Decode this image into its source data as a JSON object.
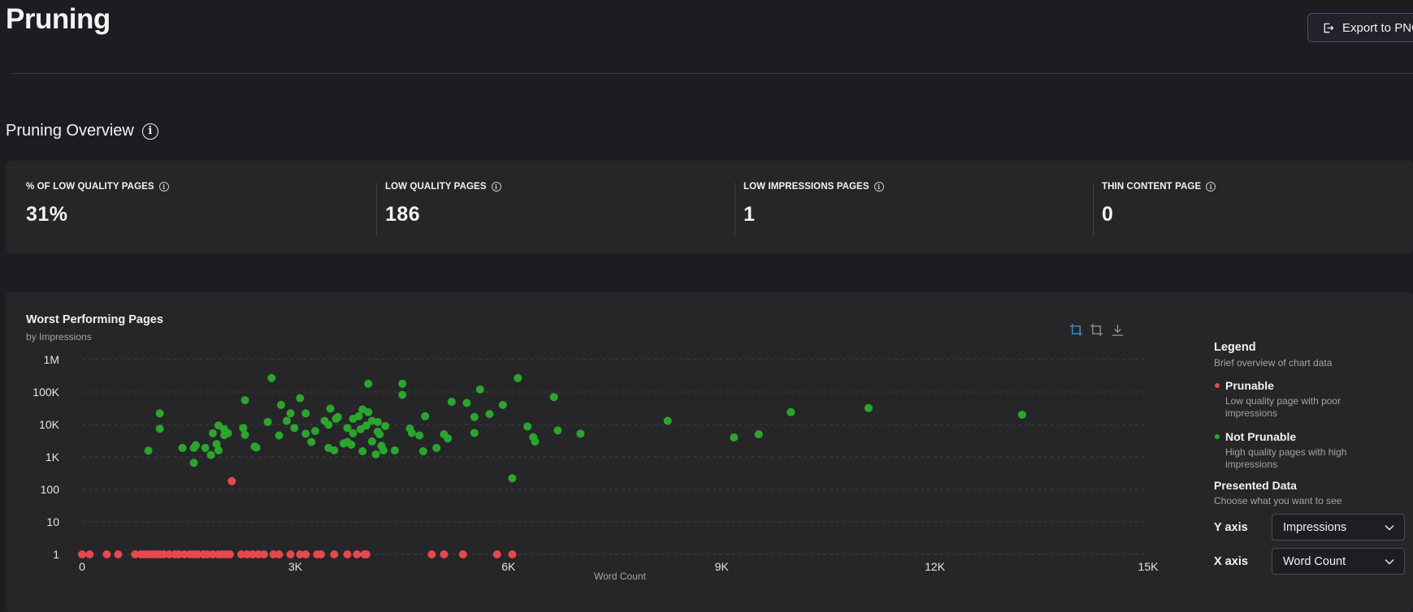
{
  "page": {
    "title": "Pruning",
    "export_label": "Export to PNG"
  },
  "overview": {
    "title": "Pruning Overview",
    "kpis": [
      {
        "label": "% OF LOW QUALITY PAGES",
        "value": "31%"
      },
      {
        "label": "LOW QUALITY PAGES",
        "value": "186"
      },
      {
        "label": "LOW IMPRESSIONS PAGES",
        "value": "1"
      },
      {
        "label": "THIN CONTENT PAGE",
        "value": "0"
      }
    ]
  },
  "chart": {
    "title": "Worst Performing Pages",
    "subtitle": "by Impressions",
    "toolbar_icons": [
      "crop-select-icon",
      "crop-reset-icon",
      "download-icon"
    ]
  },
  "legend": {
    "title": "Legend",
    "subtitle": "Brief overview of chart data",
    "items": [
      {
        "name": "Prunable",
        "description": "Low quality page with poor impressions"
      },
      {
        "name": "Not Prunable",
        "description": "High quality pages with high impressions"
      }
    ],
    "presented_title": "Presented Data",
    "presented_subtitle": "Choose what you want to see",
    "y_axis_label": "Y axis",
    "y_axis_value": "Impressions",
    "x_axis_label": "X axis",
    "x_axis_value": "Word Count"
  },
  "colors": {
    "prunable": "#e5484d",
    "not_prunable": "#2ba52e",
    "accent": "#3e8ed0"
  },
  "chart_data": {
    "type": "scatter",
    "title": "Worst Performing Pages",
    "subtitle": "by Impressions",
    "xlabel": "Word Count",
    "ylabel": "",
    "xlim": [
      0,
      15000
    ],
    "ylim": [
      1,
      1000000
    ],
    "y_scale": "log",
    "x_ticks": [
      "0",
      "3K",
      "6K",
      "9K",
      "12K",
      "15K"
    ],
    "y_ticks": [
      "1",
      "10",
      "100",
      "1K",
      "10K",
      "100K",
      "1M"
    ],
    "grid": true,
    "legend_position": "right",
    "series": [
      {
        "name": "Not Prunable",
        "color": "#2ba52e",
        "points": [
          [
            933,
            1563
          ],
          [
            1093,
            7400
          ],
          [
            1093,
            22000
          ],
          [
            1413,
            1900
          ],
          [
            1573,
            657
          ],
          [
            1573,
            1900
          ],
          [
            1600,
            2300
          ],
          [
            1733,
            1900
          ],
          [
            1813,
            1150
          ],
          [
            1840,
            5400
          ],
          [
            1893,
            2500
          ],
          [
            1920,
            1600
          ],
          [
            1920,
            9300
          ],
          [
            2000,
            4700
          ],
          [
            2000,
            7200
          ],
          [
            2053,
            5400
          ],
          [
            2267,
            7800
          ],
          [
            2293,
            4800
          ],
          [
            2293,
            56000
          ],
          [
            2427,
            2100
          ],
          [
            2453,
            1950
          ],
          [
            2613,
            12000
          ],
          [
            2667,
            270000
          ],
          [
            2773,
            4600
          ],
          [
            2800,
            40000
          ],
          [
            2880,
            13000
          ],
          [
            2933,
            22000
          ],
          [
            2987,
            7800
          ],
          [
            3067,
            65000
          ],
          [
            3147,
            5200
          ],
          [
            3147,
            22000
          ],
          [
            3227,
            2900
          ],
          [
            3280,
            6300
          ],
          [
            3413,
            13000
          ],
          [
            3467,
            1900
          ],
          [
            3467,
            9900
          ],
          [
            3493,
            31000
          ],
          [
            3547,
            1600
          ],
          [
            3573,
            15000
          ],
          [
            3600,
            17000
          ],
          [
            3680,
            2600
          ],
          [
            3733,
            2900
          ],
          [
            3733,
            7800
          ],
          [
            3787,
            2400
          ],
          [
            3813,
            5400
          ],
          [
            3813,
            15000
          ],
          [
            3893,
            18000
          ],
          [
            3920,
            7200
          ],
          [
            3947,
            1500
          ],
          [
            3947,
            29000
          ],
          [
            4000,
            9300
          ],
          [
            4027,
            24000
          ],
          [
            4027,
            180000
          ],
          [
            4080,
            13000
          ],
          [
            4080,
            3000
          ],
          [
            4133,
            1200
          ],
          [
            4160,
            6000
          ],
          [
            4160,
            12000
          ],
          [
            4187,
            5000
          ],
          [
            4213,
            2200
          ],
          [
            4240,
            1600
          ],
          [
            4267,
            9000
          ],
          [
            4400,
            1600
          ],
          [
            4507,
            180000
          ],
          [
            4507,
            82000
          ],
          [
            4613,
            7500
          ],
          [
            4640,
            5500
          ],
          [
            4747,
            4600
          ],
          [
            4800,
            1500
          ],
          [
            4827,
            18000
          ],
          [
            4987,
            1900
          ],
          [
            5093,
            5000
          ],
          [
            5147,
            3700
          ],
          [
            5200,
            50000
          ],
          [
            5413,
            46000
          ],
          [
            5520,
            17000
          ],
          [
            5520,
            5500
          ],
          [
            5600,
            120000
          ],
          [
            5733,
            21000
          ],
          [
            5920,
            40000
          ],
          [
            6053,
            220
          ],
          [
            6133,
            270000
          ],
          [
            6267,
            8700
          ],
          [
            6347,
            4100
          ],
          [
            6373,
            3000
          ],
          [
            6640,
            70000
          ],
          [
            6693,
            6600
          ],
          [
            7013,
            5200
          ],
          [
            8240,
            13000
          ],
          [
            9173,
            4000
          ],
          [
            9520,
            5000
          ],
          [
            9973,
            24000
          ],
          [
            11067,
            32000
          ],
          [
            13227,
            20000
          ]
        ]
      },
      {
        "name": "Prunable",
        "color": "#e5484d",
        "points": [
          [
            0,
            1
          ],
          [
            107,
            1
          ],
          [
            347,
            1
          ],
          [
            507,
            1
          ],
          [
            747,
            1
          ],
          [
            827,
            1
          ],
          [
            880,
            1
          ],
          [
            933,
            1
          ],
          [
            987,
            1
          ],
          [
            1040,
            1
          ],
          [
            1093,
            1
          ],
          [
            1147,
            1
          ],
          [
            1227,
            1
          ],
          [
            1307,
            1
          ],
          [
            1360,
            1
          ],
          [
            1440,
            1
          ],
          [
            1520,
            1
          ],
          [
            1573,
            1
          ],
          [
            1627,
            1
          ],
          [
            1707,
            1
          ],
          [
            1760,
            1
          ],
          [
            1840,
            1
          ],
          [
            1920,
            1
          ],
          [
            1973,
            1
          ],
          [
            2027,
            1
          ],
          [
            2080,
            1
          ],
          [
            2107,
            180
          ],
          [
            2240,
            1
          ],
          [
            2320,
            1
          ],
          [
            2400,
            1
          ],
          [
            2480,
            1
          ],
          [
            2560,
            1
          ],
          [
            2693,
            1
          ],
          [
            2773,
            1
          ],
          [
            2933,
            1
          ],
          [
            3067,
            1
          ],
          [
            3147,
            1
          ],
          [
            3307,
            1
          ],
          [
            3360,
            1
          ],
          [
            3547,
            1
          ],
          [
            3733,
            1
          ],
          [
            3867,
            1
          ],
          [
            3973,
            1
          ],
          [
            4000,
            1
          ],
          [
            4920,
            1
          ],
          [
            5093,
            1
          ],
          [
            5360,
            1
          ],
          [
            5840,
            1
          ],
          [
            6053,
            1
          ]
        ]
      }
    ]
  }
}
